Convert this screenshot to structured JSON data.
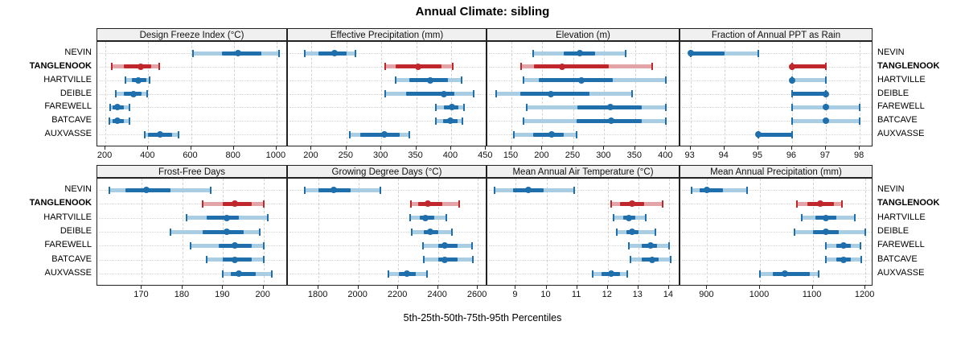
{
  "title": "Annual Climate: sibling",
  "caption": "5th-25th-50th-75th-95th Percentiles",
  "highlight_site": "TANGLENOOK",
  "colors": {
    "blue": "#1f6fad",
    "blue_light": "#a9cde2",
    "red": "#c0272c",
    "red_light": "#e2a4a6",
    "strip_bg": "#f0f0f0",
    "border": "#222222",
    "grid": "#d2d2d2"
  },
  "chart_data": {
    "type": "dotplot-intervals",
    "percentiles": [
      5,
      25,
      50,
      75,
      95
    ],
    "sites": [
      "NEVIN",
      "TANGLENOOK",
      "HARTVILLE",
      "DEIBLE",
      "FAREWELL",
      "BATCAVE",
      "AUXVASSE"
    ],
    "legend": "TANGLENOOK row drawn in red, all other sites in blue",
    "panels": [
      {
        "label": "Design Freeze Index (°C)",
        "row": "top",
        "col": 0,
        "ticks": [
          200,
          400,
          600,
          800,
          1000
        ],
        "axis_range": [
          162,
          1053
        ],
        "values": [
          [
            610,
            745,
            820,
            930,
            1010
          ],
          [
            230,
            285,
            365,
            415,
            450
          ],
          [
            295,
            325,
            355,
            390,
            405
          ],
          [
            250,
            285,
            330,
            370,
            395
          ],
          [
            222,
            235,
            257,
            285,
            313
          ],
          [
            220,
            235,
            255,
            285,
            312
          ],
          [
            385,
            400,
            455,
            510,
            540
          ]
        ]
      },
      {
        "label": "Effective Precipitation (mm)",
        "row": "top",
        "col": 1,
        "ticks": [
          200,
          250,
          300,
          350,
          400,
          450
        ],
        "axis_range": [
          166,
          452
        ],
        "values": [
          [
            190,
            210,
            233,
            250,
            263
          ],
          [
            306,
            320,
            353,
            386,
            402
          ],
          [
            320,
            340,
            370,
            396,
            415
          ],
          [
            306,
            335,
            390,
            405,
            432
          ],
          [
            378,
            390,
            401,
            411,
            418
          ],
          [
            378,
            389,
            399,
            409,
            416
          ],
          [
            255,
            270,
            304,
            326,
            340
          ]
        ]
      },
      {
        "label": "Elevation (m)",
        "row": "top",
        "col": 2,
        "ticks": [
          150,
          200,
          250,
          300,
          350,
          400
        ],
        "axis_range": [
          111,
          423
        ],
        "values": [
          [
            185,
            235,
            260,
            285,
            335
          ],
          [
            165,
            186,
            232,
            307,
            377
          ],
          [
            170,
            194,
            263,
            314,
            400
          ],
          [
            125,
            164,
            214,
            276,
            345
          ],
          [
            175,
            257,
            310,
            360,
            400
          ],
          [
            170,
            255,
            311,
            360,
            400
          ],
          [
            154,
            185,
            215,
            235,
            255
          ]
        ]
      },
      {
        "label": "Fraction of Annual PPT as Rain",
        "row": "top",
        "col": 3,
        "ticks": [
          93,
          94,
          95,
          96,
          97,
          98
        ],
        "axis_range": [
          92.7,
          98.4
        ],
        "values": [
          [
            93,
            93,
            93,
            94,
            95
          ],
          [
            96,
            96,
            96,
            97,
            97
          ],
          [
            96,
            96,
            96,
            96,
            97
          ],
          [
            96,
            96,
            97,
            97,
            97
          ],
          [
            96,
            97,
            97,
            97,
            98
          ],
          [
            96,
            97,
            97,
            97,
            98
          ],
          [
            95,
            95,
            95,
            96,
            96
          ]
        ]
      },
      {
        "label": "Frost-Free Days",
        "row": "bottom",
        "col": 0,
        "ticks": [
          170,
          180,
          190,
          200
        ],
        "axis_range": [
          159,
          206
        ],
        "values": [
          [
            162,
            166,
            171,
            177,
            187
          ],
          [
            185,
            190,
            193,
            197,
            200
          ],
          [
            181,
            186,
            191,
            194,
            201
          ],
          [
            177,
            185,
            191,
            195,
            199
          ],
          [
            182,
            189,
            193,
            197,
            200
          ],
          [
            186,
            190,
            193,
            197,
            200
          ],
          [
            190,
            192,
            194,
            198,
            202
          ]
        ]
      },
      {
        "label": "Growing Degree Days (°C)",
        "row": "bottom",
        "col": 1,
        "ticks": [
          1800,
          2000,
          2200,
          2400,
          2600
        ],
        "axis_range": [
          1646,
          2648
        ],
        "values": [
          [
            1730,
            1800,
            1875,
            1960,
            2110
          ],
          [
            2265,
            2300,
            2350,
            2420,
            2505
          ],
          [
            2260,
            2310,
            2335,
            2380,
            2440
          ],
          [
            2270,
            2330,
            2360,
            2400,
            2470
          ],
          [
            2325,
            2400,
            2435,
            2500,
            2570
          ],
          [
            2330,
            2400,
            2435,
            2500,
            2575
          ],
          [
            2150,
            2205,
            2245,
            2290,
            2345
          ]
        ]
      },
      {
        "label": "Mean Annual Air Temperature (°C)",
        "row": "bottom",
        "col": 2,
        "ticks": [
          9,
          10,
          11,
          12,
          13,
          14
        ],
        "axis_range": [
          8.07,
          14.37
        ],
        "values": [
          [
            8.3,
            8.9,
            9.4,
            9.9,
            10.9
          ],
          [
            12.1,
            12.4,
            12.8,
            13.2,
            13.8
          ],
          [
            12.2,
            12.5,
            12.7,
            12.9,
            13.25
          ],
          [
            12.3,
            12.6,
            12.8,
            13.0,
            13.55
          ],
          [
            12.7,
            13.1,
            13.4,
            13.6,
            14.0
          ],
          [
            12.75,
            13.1,
            13.45,
            13.65,
            14.05
          ],
          [
            11.5,
            11.8,
            12.1,
            12.4,
            12.65
          ]
        ]
      },
      {
        "label": "Mean Annual Precipitation (mm)",
        "row": "bottom",
        "col": 3,
        "ticks": [
          900,
          1000,
          1100,
          1200
        ],
        "axis_range": [
          849,
          1215
        ],
        "values": [
          [
            870,
            885,
            900,
            930,
            975
          ],
          [
            1070,
            1090,
            1115,
            1140,
            1155
          ],
          [
            1080,
            1105,
            1125,
            1145,
            1180
          ],
          [
            1065,
            1100,
            1125,
            1150,
            1200
          ],
          [
            1125,
            1145,
            1158,
            1172,
            1190
          ],
          [
            1125,
            1145,
            1158,
            1172,
            1192
          ],
          [
            1000,
            1025,
            1048,
            1095,
            1112
          ]
        ]
      }
    ]
  }
}
